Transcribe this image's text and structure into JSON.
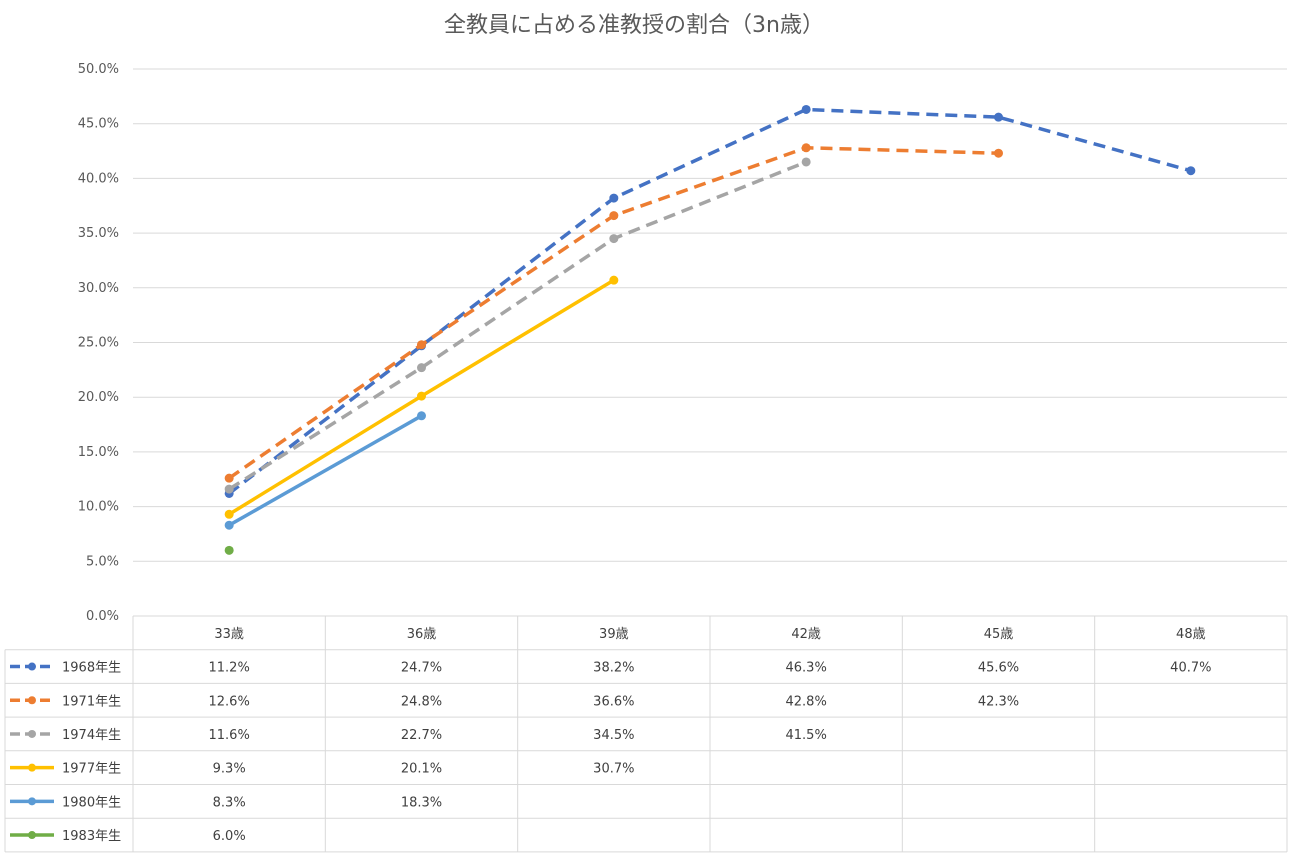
{
  "chart_data": {
    "type": "line",
    "title": "全教員に占める准教授の割合（3n歳）",
    "categories": [
      "33歳",
      "36歳",
      "39歳",
      "42歳",
      "45歳",
      "48歳"
    ],
    "ylim": [
      0,
      50
    ],
    "yticks": [
      "0.0%",
      "5.0%",
      "10.0%",
      "15.0%",
      "20.0%",
      "25.0%",
      "30.0%",
      "35.0%",
      "40.0%",
      "45.0%",
      "50.0%"
    ],
    "grid": true,
    "legend": "data-table",
    "series": [
      {
        "name": "1968年生",
        "color": "#4472c4",
        "dashed": true,
        "values": [
          11.2,
          24.7,
          38.2,
          46.3,
          45.6,
          40.7
        ],
        "labels": [
          "11.2%",
          "24.7%",
          "38.2%",
          "46.3%",
          "45.6%",
          "40.7%"
        ]
      },
      {
        "name": "1971年生",
        "color": "#ed7d31",
        "dashed": true,
        "values": [
          12.6,
          24.8,
          36.6,
          42.8,
          42.3,
          null
        ],
        "labels": [
          "12.6%",
          "24.8%",
          "36.6%",
          "42.8%",
          "42.3%",
          ""
        ]
      },
      {
        "name": "1974年生",
        "color": "#a5a5a5",
        "dashed": true,
        "values": [
          11.6,
          22.7,
          34.5,
          41.5,
          null,
          null
        ],
        "labels": [
          "11.6%",
          "22.7%",
          "34.5%",
          "41.5%",
          "",
          ""
        ]
      },
      {
        "name": "1977年生",
        "color": "#ffc000",
        "dashed": false,
        "values": [
          9.3,
          20.1,
          30.7,
          null,
          null,
          null
        ],
        "labels": [
          "9.3%",
          "20.1%",
          "30.7%",
          "",
          "",
          ""
        ]
      },
      {
        "name": "1980年生",
        "color": "#5b9bd5",
        "dashed": false,
        "values": [
          8.3,
          18.3,
          null,
          null,
          null,
          null
        ],
        "labels": [
          "8.3%",
          "18.3%",
          "",
          "",
          "",
          ""
        ]
      },
      {
        "name": "1983年生",
        "color": "#70ad47",
        "dashed": false,
        "values": [
          6.0,
          null,
          null,
          null,
          null,
          null
        ],
        "labels": [
          "6.0%",
          "",
          "",
          "",
          "",
          ""
        ]
      }
    ]
  }
}
